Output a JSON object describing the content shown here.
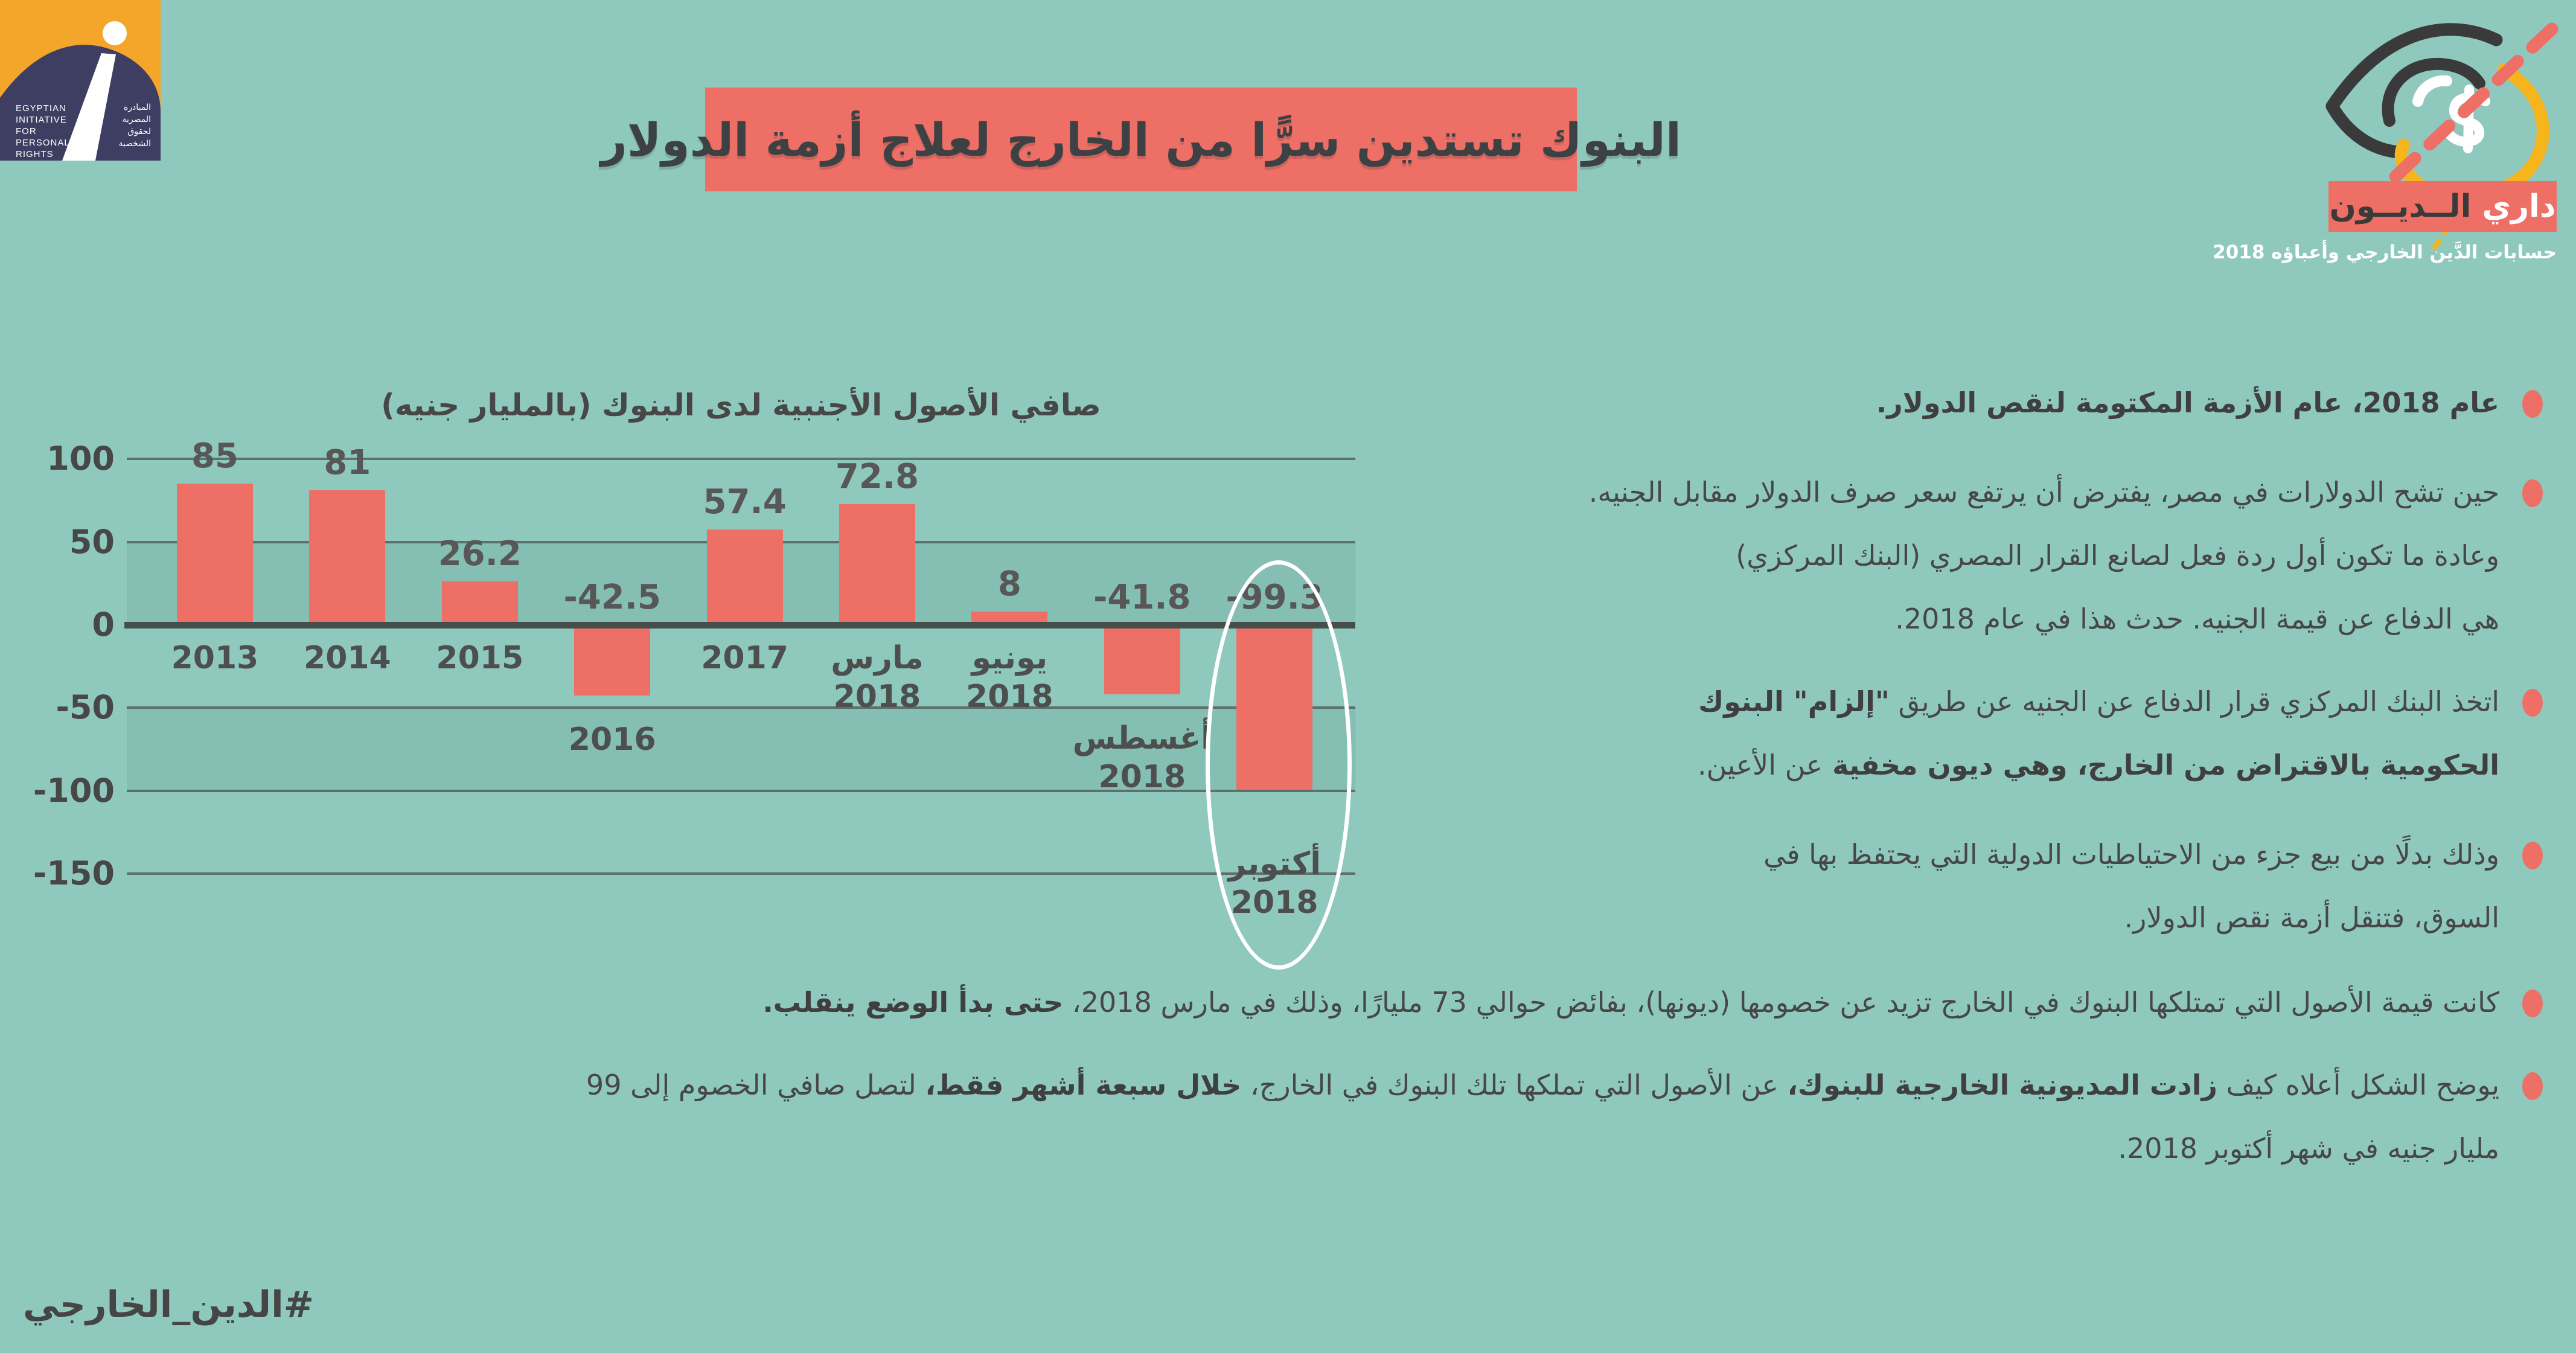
{
  "theme": {
    "bg": "#8fc9be",
    "band": "#85beb2",
    "accent": "#ee6f66",
    "text": "#474747",
    "grid": "#5e706b",
    "zero_line": "#454e4b",
    "white": "#ffffff"
  },
  "eipr_logo": {
    "orange": "#f4a62a",
    "navy": "#3e3e63",
    "en_lines": [
      "EGYPTIAN",
      "INITIATIVE",
      "FOR",
      "PERSONAL",
      "RIGHTS"
    ],
    "ar_lines": [
      "المبادرة",
      "المصرية",
      "لحقوق",
      "الشخصية"
    ]
  },
  "header": {
    "title": "البنوك تستدين سرًّا من الخارج لعلاج أزمة الدولار"
  },
  "brand": {
    "name_first": "داري",
    "name_rest": "الــديــون",
    "subtitle": "حسابات الدَّين الخارجي وأعباؤه 2018",
    "yellow": "#f6b41d",
    "icon_dark": "#3a3a3a"
  },
  "chart_data": {
    "type": "bar",
    "title": "صافي الأصول الأجنبية لدى البنوك (بالمليار جنيه)",
    "unit": "بالمليار جنيه",
    "categories": [
      "2013",
      "2014",
      "2015",
      "2016",
      "2017",
      "مارس 2018",
      "يونيو 2018",
      "أغسطس 2018",
      "أكتوبر 2018"
    ],
    "cat_lines": [
      [
        "2013"
      ],
      [
        "2014"
      ],
      [
        "2015"
      ],
      [
        "2016"
      ],
      [
        "2017"
      ],
      [
        "مارس",
        "2018"
      ],
      [
        "يونيو",
        "2018"
      ],
      [
        "أغسطس",
        "2018"
      ],
      [
        "أكتوبر",
        "2018"
      ]
    ],
    "values": [
      85,
      81,
      26.2,
      -42.5,
      57.4,
      72.8,
      8,
      -41.8,
      -99.3
    ],
    "labels": [
      "85",
      "81",
      "26.2",
      "-42.5",
      "57.4",
      "72.8",
      "8",
      "-41.8",
      "-99.3"
    ],
    "yticks": [
      100,
      50,
      0,
      -50,
      -100,
      -150
    ],
    "ylim": [
      -150,
      100
    ],
    "grid": "on",
    "legend": "none",
    "bar_color": "#ee6f66",
    "dark_bands": [
      [
        50,
        0
      ],
      [
        -50,
        -100
      ]
    ],
    "highlight": {
      "index": 8,
      "shape": "ellipse",
      "color": "#ffffff"
    }
  },
  "bullets": [
    {
      "lines": [
        [
          {
            "text": "عام 2018، عام الأزمة المكتومة لنقص الدولار.",
            "bold": true
          }
        ]
      ]
    },
    {
      "lines": [
        [
          {
            "text": "حين تشح الدولارات في مصر، يفترض أن يرتفع سعر صرف الدولار مقابل الجنيه.",
            "bold": false
          }
        ],
        [
          {
            "text": "وعادة ما تكون أول ردة فعل لصانع القرار المصري (البنك المركزي)",
            "bold": false
          }
        ],
        [
          {
            "text": "هي الدفاع عن قيمة الجنيه. حدث هذا في عام 2018.",
            "bold": false
          }
        ]
      ]
    },
    {
      "lines": [
        [
          {
            "text": "اتخذ البنك المركزي قرار الدفاع عن الجنيه عن طريق ",
            "bold": false
          },
          {
            "text": "\"إلزام\" البنوك",
            "bold": true
          }
        ],
        [
          {
            "text": "الحكومية بالاقتراض من الخارج، وهي ديون مخفية ",
            "bold": true
          },
          {
            "text": "عن الأعين.",
            "bold": false
          }
        ]
      ]
    },
    {
      "lines": [
        [
          {
            "text": "وذلك بدلًا من بيع جزء من الاحتياطيات الدولية التي يحتفظ بها في",
            "bold": false
          }
        ],
        [
          {
            "text": "السوق، فتنقل أزمة نقص الدولار.",
            "bold": false
          }
        ]
      ]
    },
    {
      "lines": [
        [
          {
            "text": "كانت قيمة الأصول التي تمتلكها البنوك في الخارج تزيد عن خصومها (ديونها)، بفائض حوالي 73 مليارًا، وذلك في مارس 2018، ",
            "bold": false
          },
          {
            "text": "حتى بدأ الوضع ينقلب.",
            "bold": true
          }
        ]
      ]
    },
    {
      "lines": [
        [
          {
            "text": "يوضح الشكل أعلاه كيف ",
            "bold": false
          },
          {
            "text": "زادت المديونية الخارجية للبنوك،",
            "bold": true
          },
          {
            "text": " عن الأصول التي تملكها تلك البنوك في الخارج، ",
            "bold": false
          },
          {
            "text": "خلال سبعة أشهر فقط،",
            "bold": true
          },
          {
            "text": " لتصل صافي الخصوم إلى 99",
            "bold": false
          }
        ],
        [
          {
            "text": "مليار جنيه في شهر أكتوبر 2018.",
            "bold": false
          }
        ]
      ]
    }
  ],
  "footer": {
    "hashtag": "#الدين_الخارجي"
  }
}
